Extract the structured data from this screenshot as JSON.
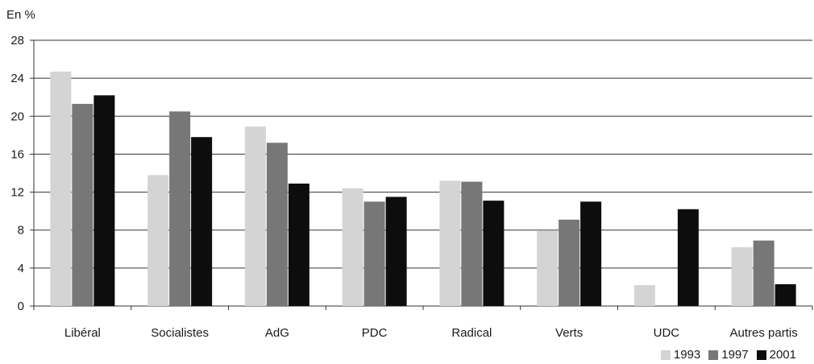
{
  "chart_data": {
    "type": "bar",
    "ylabel": "En %",
    "ylim": [
      0,
      28
    ],
    "yticks": [
      0,
      4,
      8,
      12,
      16,
      20,
      24,
      28
    ],
    "grid": true,
    "legend_position": "bottom-right",
    "categories": [
      "Libéral",
      "Socialistes",
      "AdG",
      "PDC",
      "Radical",
      "Verts",
      "UDC",
      "Autres partis"
    ],
    "series": [
      {
        "name": "1993",
        "color": "#d4d4d4",
        "values": [
          24.7,
          13.8,
          18.9,
          12.4,
          13.2,
          7.9,
          2.2,
          6.2
        ]
      },
      {
        "name": "1997",
        "color": "#777777",
        "values": [
          21.3,
          20.5,
          17.2,
          11.0,
          13.1,
          9.1,
          0,
          6.9
        ]
      },
      {
        "name": "2001",
        "color": "#0d0d0d",
        "values": [
          22.2,
          17.8,
          12.9,
          11.5,
          11.1,
          11.0,
          10.2,
          2.3
        ]
      }
    ]
  }
}
